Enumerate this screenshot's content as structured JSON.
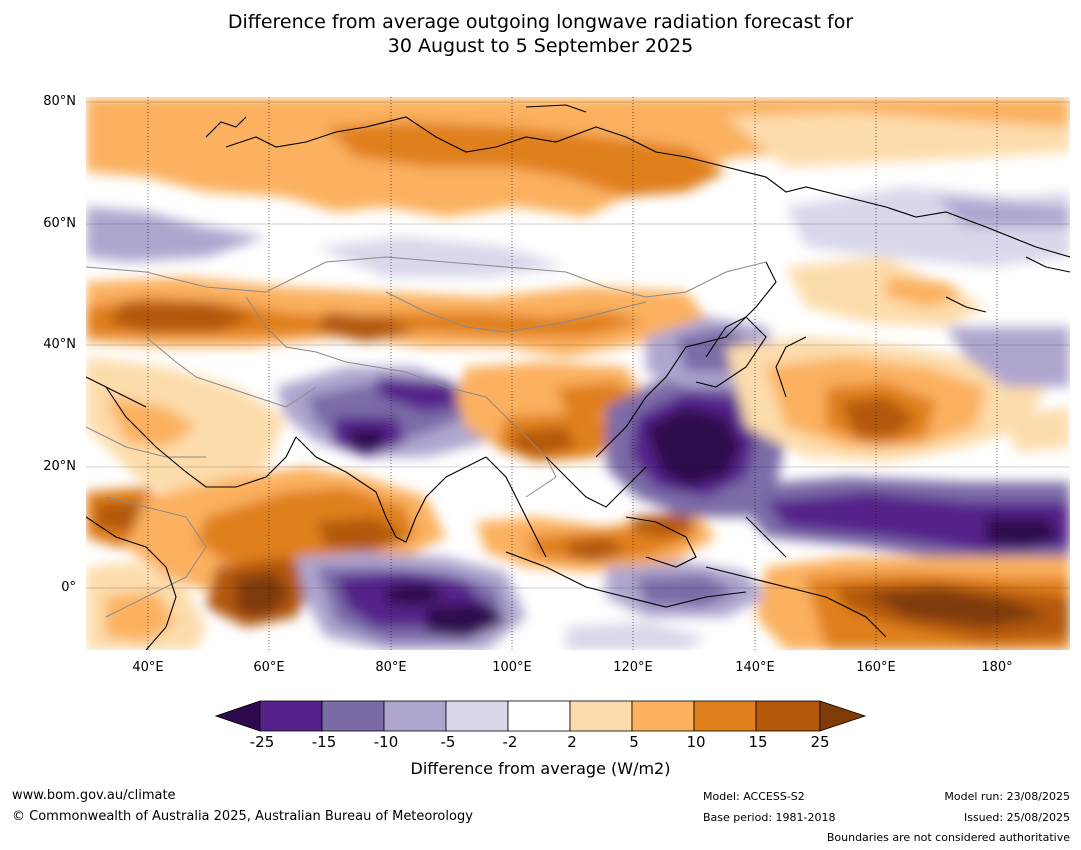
{
  "title": {
    "line1": "Difference from average outgoing longwave radiation forecast for",
    "line2": "30 August to 5 September 2025"
  },
  "map": {
    "lat_labels": [
      "80°N",
      "60°N",
      "40°N",
      "20°N",
      "0°"
    ],
    "lon_labels": [
      "40°E",
      "60°E",
      "80°E",
      "100°E",
      "120°E",
      "140°E",
      "160°E",
      "180°"
    ]
  },
  "colorbar": {
    "ticks": [
      "-25",
      "-15",
      "-10",
      "-5",
      "-2",
      "2",
      "5",
      "10",
      "15",
      "25"
    ],
    "colors": [
      "#2d0a4e",
      "#54228a",
      "#7b6ca8",
      "#afa6cf",
      "#d9d7ea",
      "#ffffff",
      "#fddcab",
      "#fbb15e",
      "#e0801c",
      "#b35808",
      "#7f3b08"
    ],
    "label": "Difference from average (W/m2)"
  },
  "footer": {
    "website": "www.bom.gov.au/climate",
    "copyright": "© Commonwealth of Australia 2025, Australian Bureau of Meteorology",
    "model": "Model: ACCESS-S2",
    "base_period": "Base period: 1981-2018",
    "model_run": "Model run: 23/08/2025",
    "issued": "Issued: 25/08/2025",
    "disclaimer": "Boundaries are not considered authoritative"
  }
}
